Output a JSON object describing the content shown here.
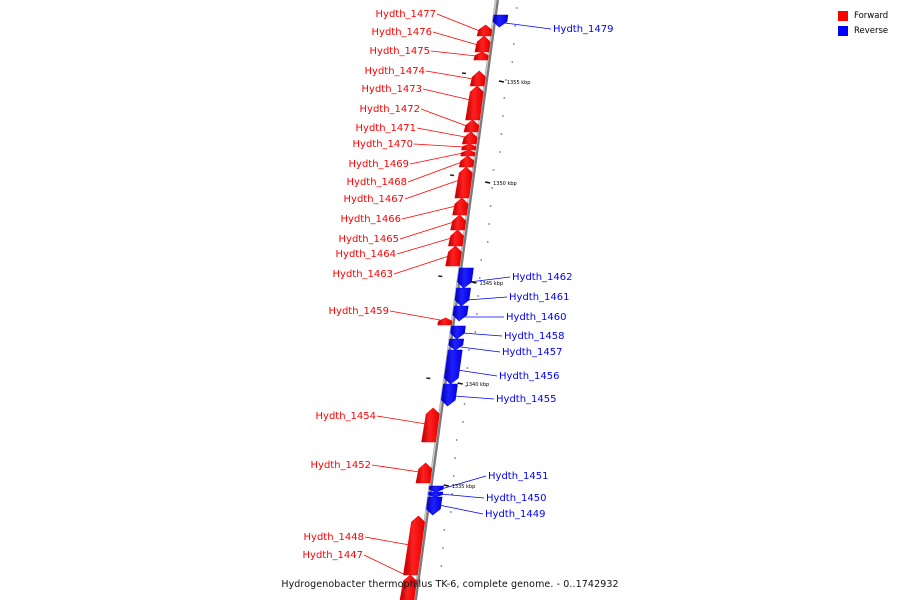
{
  "legend": {
    "forward_label": "Forward",
    "reverse_label": "Reverse",
    "forward_color": "#ff0000",
    "reverse_color": "#0000ff"
  },
  "caption": "Hydrogenobacter thermophilus TK-6, complete genome. - 0..1742932",
  "scale_labels": [
    "1355 kbp",
    "1350 kbp",
    "1345 kbp",
    "1340 kbp",
    "1335 kbp"
  ],
  "genes": [
    {
      "id": "Hydth_1477",
      "strand": "forward"
    },
    {
      "id": "Hydth_1476",
      "strand": "forward"
    },
    {
      "id": "Hydth_1475",
      "strand": "forward"
    },
    {
      "id": "Hydth_1474",
      "strand": "forward"
    },
    {
      "id": "Hydth_1473",
      "strand": "forward"
    },
    {
      "id": "Hydth_1472",
      "strand": "forward"
    },
    {
      "id": "Hydth_1471",
      "strand": "forward"
    },
    {
      "id": "Hydth_1470",
      "strand": "forward"
    },
    {
      "id": "Hydth_1469",
      "strand": "forward"
    },
    {
      "id": "Hydth_1468",
      "strand": "forward"
    },
    {
      "id": "Hydth_1467",
      "strand": "forward"
    },
    {
      "id": "Hydth_1466",
      "strand": "forward"
    },
    {
      "id": "Hydth_1465",
      "strand": "forward"
    },
    {
      "id": "Hydth_1464",
      "strand": "forward"
    },
    {
      "id": "Hydth_1463",
      "strand": "forward"
    },
    {
      "id": "Hydth_1459",
      "strand": "forward"
    },
    {
      "id": "Hydth_1454",
      "strand": "forward"
    },
    {
      "id": "Hydth_1452",
      "strand": "forward"
    },
    {
      "id": "Hydth_1448",
      "strand": "forward"
    },
    {
      "id": "Hydth_1447",
      "strand": "forward"
    },
    {
      "id": "Hydth_1479",
      "strand": "reverse"
    },
    {
      "id": "Hydth_1462",
      "strand": "reverse"
    },
    {
      "id": "Hydth_1461",
      "strand": "reverse"
    },
    {
      "id": "Hydth_1460",
      "strand": "reverse"
    },
    {
      "id": "Hydth_1458",
      "strand": "reverse"
    },
    {
      "id": "Hydth_1457",
      "strand": "reverse"
    },
    {
      "id": "Hydth_1456",
      "strand": "reverse"
    },
    {
      "id": "Hydth_1455",
      "strand": "reverse"
    },
    {
      "id": "Hydth_1451",
      "strand": "reverse"
    },
    {
      "id": "Hydth_1450",
      "strand": "reverse"
    },
    {
      "id": "Hydth_1449",
      "strand": "reverse"
    }
  ]
}
